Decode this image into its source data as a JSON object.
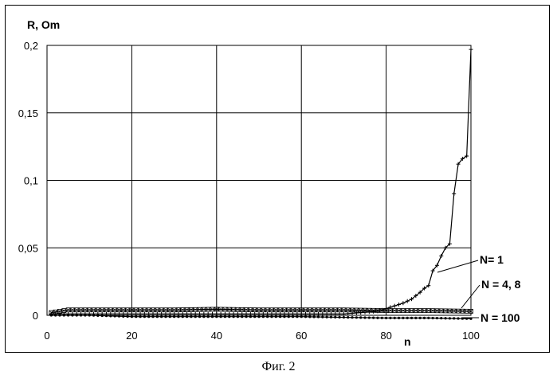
{
  "caption": "Фиг. 2",
  "chart_data": {
    "type": "line",
    "xlabel": "n",
    "ylabel": "R, Om",
    "xlim": [
      0,
      100
    ],
    "ylim": [
      0,
      0.2
    ],
    "x_ticks": [
      0,
      20,
      40,
      60,
      80,
      100
    ],
    "y_ticks": [
      0,
      0.05,
      0.1,
      0.15,
      0.2
    ],
    "x_tick_labels": [
      "0",
      "20",
      "40",
      "60",
      "80",
      "100"
    ],
    "y_tick_labels": [
      "0",
      "0,05",
      "0,1",
      "0,15",
      "0,2"
    ],
    "grid": true,
    "legend_placement": "right (labels with leader lines)",
    "series": [
      {
        "name": "N= 1",
        "marker": "plus",
        "color": "#000000",
        "points": [
          [
            1,
            0.001
          ],
          [
            10,
            0.001
          ],
          [
            20,
            0.001
          ],
          [
            30,
            0.001
          ],
          [
            40,
            0.001
          ],
          [
            50,
            0.001
          ],
          [
            60,
            0.001
          ],
          [
            70,
            0.001
          ],
          [
            74,
            0.002
          ],
          [
            76,
            0.0025
          ],
          [
            78,
            0.003
          ],
          [
            80,
            0.005
          ],
          [
            82,
            0.007
          ],
          [
            84,
            0.009
          ],
          [
            86,
            0.012
          ],
          [
            88,
            0.017
          ],
          [
            89,
            0.02
          ],
          [
            90,
            0.022
          ],
          [
            91,
            0.033
          ],
          [
            92,
            0.037
          ],
          [
            93,
            0.044
          ],
          [
            94,
            0.05
          ],
          [
            95,
            0.053
          ],
          [
            96,
            0.09
          ],
          [
            97,
            0.112
          ],
          [
            98,
            0.116
          ],
          [
            99,
            0.118
          ],
          [
            100,
            0.197
          ]
        ]
      },
      {
        "name": "N = 4, 8",
        "marker": "x-square",
        "color": "#000000",
        "points": [
          [
            1,
            0.002
          ],
          [
            3,
            0.003
          ],
          [
            5,
            0.004
          ],
          [
            10,
            0.004
          ],
          [
            20,
            0.004
          ],
          [
            30,
            0.004
          ],
          [
            40,
            0.0045
          ],
          [
            50,
            0.004
          ],
          [
            60,
            0.004
          ],
          [
            70,
            0.004
          ],
          [
            80,
            0.0035
          ],
          [
            90,
            0.0035
          ],
          [
            100,
            0.003
          ]
        ]
      },
      {
        "name": "N = 100",
        "marker": "dot",
        "color": "#000000",
        "points": [
          [
            1,
            0
          ],
          [
            10,
            0
          ],
          [
            20,
            -0.001
          ],
          [
            30,
            -0.001
          ],
          [
            40,
            -0.001
          ],
          [
            50,
            -0.001
          ],
          [
            60,
            -0.001
          ],
          [
            70,
            -0.0015
          ],
          [
            80,
            -0.002
          ],
          [
            90,
            -0.002
          ],
          [
            100,
            -0.0025
          ]
        ]
      }
    ]
  }
}
